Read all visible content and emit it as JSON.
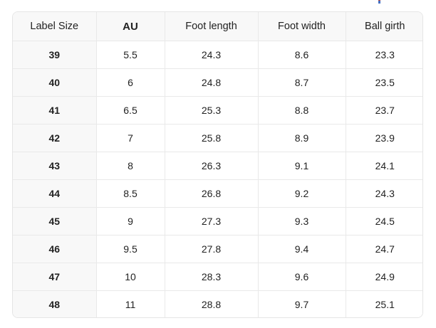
{
  "page": {
    "background": "#ffffff"
  },
  "clipped_fragment": {
    "description": "tiny clipped blue element at top edge",
    "color": "#4472c4"
  },
  "table": {
    "colors": {
      "header_bg": "#f8f8f8",
      "first_col_bg": "#f8f8f8",
      "outer_border": "#e5e5e5",
      "grid_line": "#e9e9e9",
      "text": "#222222"
    },
    "columns": [
      {
        "label": "Label Size",
        "bold": false
      },
      {
        "label": "AU",
        "bold": true
      },
      {
        "label": "Foot length",
        "bold": false
      },
      {
        "label": "Foot width",
        "bold": false
      },
      {
        "label": "Ball girth",
        "bold": false
      }
    ],
    "rows": [
      [
        "39",
        "5.5",
        "24.3",
        "8.6",
        "23.3"
      ],
      [
        "40",
        "6",
        "24.8",
        "8.7",
        "23.5"
      ],
      [
        "41",
        "6.5",
        "25.3",
        "8.8",
        "23.7"
      ],
      [
        "42",
        "7",
        "25.8",
        "8.9",
        "23.9"
      ],
      [
        "43",
        "8",
        "26.3",
        "9.1",
        "24.1"
      ],
      [
        "44",
        "8.5",
        "26.8",
        "9.2",
        "24.3"
      ],
      [
        "45",
        "9",
        "27.3",
        "9.3",
        "24.5"
      ],
      [
        "46",
        "9.5",
        "27.8",
        "9.4",
        "24.7"
      ],
      [
        "47",
        "10",
        "28.3",
        "9.6",
        "24.9"
      ],
      [
        "48",
        "11",
        "28.8",
        "9.7",
        "25.1"
      ]
    ]
  }
}
